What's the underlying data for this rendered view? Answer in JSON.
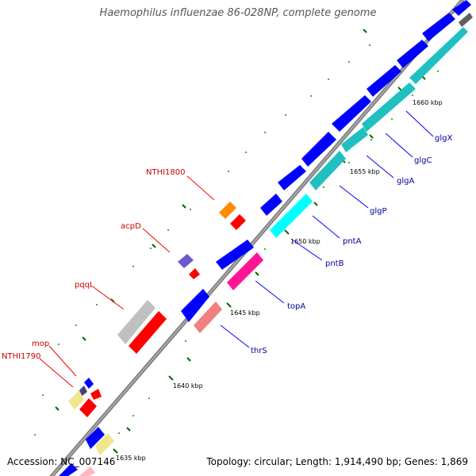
{
  "title": "Haemophilus influenzae 86-028NP, complete genome",
  "footer": {
    "accession": "Accession: NC_007146",
    "summary": "Topology: circular; Length: 1,914,490 bp; Genes: 1,869"
  },
  "ticks": [
    "1635 kbp",
    "1640 kbp",
    "1645 kbp",
    "1650 kbp",
    "1655 kbp",
    "1660 kbp"
  ],
  "labels_reverse": [
    "NTHI1800",
    "acpD",
    "pqqL",
    "mop",
    "NTHI1790"
  ],
  "labels_forward": [
    "glgX",
    "glgC",
    "glgA",
    "glgP",
    "pntA",
    "pntB",
    "topA",
    "thrS"
  ],
  "colors": {
    "backbone": "#808080",
    "forward_cds": "#0000ff",
    "reverse_cds": "#ff0000",
    "rna_forward": "#00cccc",
    "rna_reverse": "#ff1493",
    "reverse_label": "#cc0000",
    "forward_label": "#000099",
    "tick": "#006600"
  }
}
